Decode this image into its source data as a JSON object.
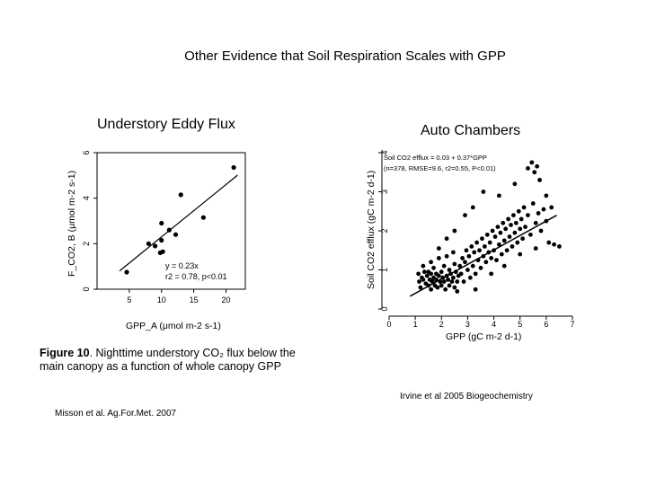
{
  "slide": {
    "title": "Other Evidence that Soil Respiration Scales with GPP",
    "left_heading": "Understory Eddy Flux",
    "right_heading": "Auto Chambers",
    "left_caption_bold": "Figure 10",
    "left_caption_line1": ". Nighttime understory CO₂ flux below the",
    "left_caption_line2": "main canopy as a function of whole canopy GPP",
    "left_source": "Misson et al. Ag.For.Met. 2007",
    "right_source": "Irvine et al 2005 Biogeochemistry"
  },
  "chart_data": [
    {
      "type": "scatter",
      "title": "Understory Eddy Flux",
      "xlabel": "GPP_A (μmol m-2 s-1)",
      "ylabel": "F_CO2, B (μmol m-2 s-1)",
      "xlim": [
        0,
        23
      ],
      "ylim": [
        0,
        6
      ],
      "xticks": [
        5,
        10,
        15,
        20
      ],
      "yticks": [
        0,
        2,
        4,
        6
      ],
      "points": [
        [
          4.6,
          0.75
        ],
        [
          8.0,
          2.0
        ],
        [
          9.0,
          1.9
        ],
        [
          9.8,
          1.6
        ],
        [
          10.0,
          2.15
        ],
        [
          10.0,
          2.9
        ],
        [
          10.2,
          1.65
        ],
        [
          11.2,
          2.6
        ],
        [
          12.2,
          2.4
        ],
        [
          13.0,
          4.15
        ],
        [
          16.5,
          3.15
        ],
        [
          21.2,
          5.35
        ]
      ],
      "fit_line": {
        "slope": 0.23,
        "intercept": 0,
        "x_range": [
          3.5,
          21.8
        ]
      },
      "annotation_line1": "y = 0.23x",
      "annotation_line2": "r2 = 0.78, p<0.01",
      "grid": false,
      "legend": "none"
    },
    {
      "type": "scatter",
      "title": "Auto Chambers",
      "xlabel": "GPP (gC m-2 d-1)",
      "ylabel": "Soil CO2 efflux (gC m-2 d-1)",
      "xlim": [
        0,
        7
      ],
      "ylim": [
        0,
        4
      ],
      "xticks": [
        0,
        1,
        2,
        3,
        4,
        5,
        6,
        7
      ],
      "yticks": [
        0,
        1,
        2,
        3,
        4
      ],
      "n": 378,
      "points": [
        [
          1.12,
          0.9
        ],
        [
          1.15,
          0.7
        ],
        [
          1.2,
          0.55
        ],
        [
          1.25,
          0.8
        ],
        [
          1.3,
          0.75
        ],
        [
          1.35,
          0.95
        ],
        [
          1.4,
          0.65
        ],
        [
          1.45,
          0.85
        ],
        [
          1.5,
          0.6
        ],
        [
          1.5,
          0.95
        ],
        [
          1.55,
          0.75
        ],
        [
          1.6,
          0.5
        ],
        [
          1.6,
          0.9
        ],
        [
          1.65,
          0.7
        ],
        [
          1.7,
          0.8
        ],
        [
          1.7,
          1.05
        ],
        [
          1.75,
          0.6
        ],
        [
          1.8,
          0.9
        ],
        [
          1.8,
          0.75
        ],
        [
          1.85,
          0.55
        ],
        [
          1.9,
          0.85
        ],
        [
          1.95,
          0.7
        ],
        [
          2.0,
          0.95
        ],
        [
          2.0,
          0.6
        ],
        [
          2.05,
          0.8
        ],
        [
          2.1,
          0.7
        ],
        [
          2.1,
          1.1
        ],
        [
          2.15,
          0.5
        ],
        [
          2.2,
          0.85
        ],
        [
          2.25,
          0.75
        ],
        [
          2.3,
          1.0
        ],
        [
          2.3,
          0.6
        ],
        [
          2.35,
          0.9
        ],
        [
          2.4,
          0.7
        ],
        [
          2.45,
          0.8
        ],
        [
          2.5,
          1.15
        ],
        [
          2.5,
          0.55
        ],
        [
          2.55,
          0.95
        ],
        [
          2.6,
          0.7
        ],
        [
          2.65,
          0.85
        ],
        [
          1.3,
          1.1
        ],
        [
          1.6,
          1.2
        ],
        [
          1.9,
          1.3
        ],
        [
          2.2,
          1.35
        ],
        [
          2.45,
          1.45
        ],
        [
          2.7,
          1.1
        ],
        [
          2.75,
          0.9
        ],
        [
          2.8,
          1.3
        ],
        [
          2.85,
          0.7
        ],
        [
          2.9,
          1.2
        ],
        [
          2.95,
          1.5
        ],
        [
          3.0,
          1.0
        ],
        [
          3.05,
          1.35
        ],
        [
          3.1,
          0.8
        ],
        [
          3.15,
          1.6
        ],
        [
          3.2,
          1.1
        ],
        [
          3.25,
          1.45
        ],
        [
          3.3,
          0.9
        ],
        [
          3.35,
          1.7
        ],
        [
          3.4,
          1.25
        ],
        [
          3.45,
          1.5
        ],
        [
          3.5,
          1.05
        ],
        [
          3.55,
          1.8
        ],
        [
          3.6,
          1.35
        ],
        [
          3.65,
          1.6
        ],
        [
          3.7,
          1.2
        ],
        [
          3.75,
          1.9
        ],
        [
          3.8,
          1.45
        ],
        [
          3.85,
          1.7
        ],
        [
          3.9,
          1.3
        ],
        [
          3.95,
          2.0
        ],
        [
          4.0,
          1.5
        ],
        [
          4.05,
          1.85
        ],
        [
          4.1,
          1.25
        ],
        [
          4.15,
          2.1
        ],
        [
          4.2,
          1.65
        ],
        [
          4.25,
          1.95
        ],
        [
          4.3,
          1.4
        ],
        [
          4.35,
          2.2
        ],
        [
          4.4,
          1.75
        ],
        [
          4.45,
          2.05
        ],
        [
          4.5,
          1.5
        ],
        [
          4.55,
          2.3
        ],
        [
          4.6,
          1.85
        ],
        [
          4.65,
          2.15
        ],
        [
          4.7,
          1.6
        ],
        [
          4.75,
          2.4
        ],
        [
          4.8,
          1.95
        ],
        [
          4.85,
          2.2
        ],
        [
          4.9,
          1.7
        ],
        [
          4.95,
          2.5
        ],
        [
          5.0,
          2.05
        ],
        [
          5.05,
          2.3
        ],
        [
          5.1,
          1.8
        ],
        [
          5.15,
          2.6
        ],
        [
          5.2,
          2.1
        ],
        [
          5.3,
          2.4
        ],
        [
          5.4,
          1.9
        ],
        [
          5.5,
          2.7
        ],
        [
          5.6,
          2.2
        ],
        [
          5.7,
          2.45
        ],
        [
          5.8,
          2.0
        ],
        [
          5.9,
          2.55
        ],
        [
          6.0,
          2.25
        ],
        [
          6.1,
          1.7
        ],
        [
          6.3,
          1.65
        ],
        [
          6.5,
          1.6
        ],
        [
          5.3,
          3.6
        ],
        [
          5.45,
          3.75
        ],
        [
          5.55,
          3.5
        ],
        [
          5.65,
          3.65
        ],
        [
          5.75,
          3.3
        ],
        [
          4.8,
          3.2
        ],
        [
          4.2,
          2.9
        ],
        [
          3.6,
          3.0
        ],
        [
          3.2,
          2.6
        ],
        [
          2.9,
          2.4
        ],
        [
          2.5,
          2.0
        ],
        [
          2.2,
          1.8
        ],
        [
          1.9,
          1.55
        ],
        [
          3.3,
          0.5
        ],
        [
          2.6,
          0.45
        ],
        [
          3.9,
          0.9
        ],
        [
          4.4,
          1.1
        ],
        [
          5.0,
          1.4
        ],
        [
          5.6,
          1.55
        ],
        [
          6.2,
          2.6
        ],
        [
          6.0,
          2.9
        ]
      ],
      "fit_line": {
        "intercept": 0.03,
        "slope": 0.37,
        "x_range": [
          0.8,
          6.4
        ]
      },
      "annotation_line1": "Soil CO2 efflux = 0.03 + 0.37*GPP",
      "annotation_line2": "(n=378, RMSE=9.6, r2=0.55, P<0.01)",
      "grid": false,
      "legend": "none"
    }
  ]
}
